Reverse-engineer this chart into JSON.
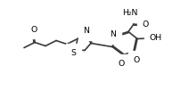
{
  "bg": "#ffffff",
  "lc": "#3a3a3a",
  "lw": 1.2,
  "fs": 6.2,
  "figsize": [
    2.12,
    1.11
  ],
  "dpi": 100,
  "xlim": [
    0.0,
    10.6
  ],
  "ylim": [
    0.0,
    5.5
  ]
}
